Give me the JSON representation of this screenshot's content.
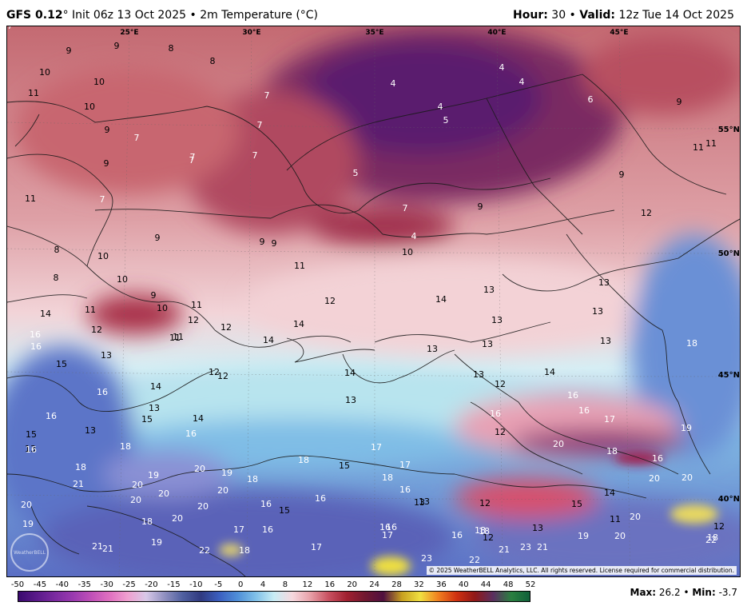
{
  "header": {
    "model": "GFS 0.12",
    "init": "° Init 06z 13 Oct 2025",
    "sep1": " • ",
    "field": "2m Temperature (°C)",
    "hour_label": "Hour:",
    "hour_value": " 30",
    "sep2": " • ",
    "valid_label": "Valid:",
    "valid_value": " 12z Tue 14 Oct 2025"
  },
  "map": {
    "lon_labels": [
      "25°E",
      "30°E",
      "35°E",
      "40°E",
      "45°E"
    ],
    "lat_labels": [
      "55°N",
      "50°N",
      "45°N",
      "40°N"
    ],
    "temperature_labels": [
      "9",
      "9",
      "8",
      "8",
      "10",
      "10",
      "11",
      "7",
      "10",
      "9",
      "7",
      "7",
      "7",
      "7",
      "7",
      "9",
      "11",
      "7",
      "9",
      "8",
      "9",
      "9",
      "10",
      "11",
      "8",
      "10",
      "9",
      "10",
      "11",
      "14",
      "11",
      "12",
      "12",
      "12",
      "16",
      "12",
      "11",
      "16",
      "13",
      "14",
      "14",
      "15",
      "16",
      "14",
      "12",
      "13",
      "16",
      "15",
      "14",
      "13",
      "15",
      "16",
      "13",
      "18",
      "16",
      "18",
      "20",
      "19",
      "20",
      "19",
      "20",
      "21",
      "20",
      "20",
      "20",
      "18",
      "20",
      "16",
      "15",
      "16",
      "19",
      "21",
      "17",
      "16",
      "18",
      "19",
      "20",
      "21",
      "22",
      "18",
      "17",
      "16",
      "18",
      "15",
      "18",
      "17",
      "17",
      "16",
      "13",
      "12",
      "14",
      "12",
      "11",
      "13",
      "13",
      "13",
      "14",
      "13",
      "13",
      "13",
      "12",
      "4",
      "4",
      "4",
      "4",
      "5",
      "5",
      "6",
      "9",
      "11",
      "11",
      "9",
      "7",
      "4",
      "9",
      "10",
      "12",
      "13",
      "13",
      "13",
      "18",
      "14",
      "16",
      "16",
      "16",
      "17",
      "20",
      "18",
      "16",
      "19",
      "20",
      "20",
      "14",
      "15",
      "13",
      "12",
      "11",
      "20",
      "20",
      "18",
      "21",
      "21",
      "23",
      "23",
      "22",
      "22",
      "12",
      "19",
      "13",
      "16",
      "17",
      "16",
      "18",
      "18",
      "12",
      "17"
    ]
  },
  "copyright": "© 2025 WeatherBELL Analytics, LLC. All rights reserved. License required for commercial distribution.",
  "logo_text": "WeatherBELL",
  "colorbar": {
    "ticks": [
      "-50",
      "-45",
      "-40",
      "-35",
      "-30",
      "-25",
      "-20",
      "-15",
      "-10",
      "-5",
      "0",
      "4",
      "8",
      "12",
      "16",
      "20",
      "24",
      "28",
      "32",
      "36",
      "40",
      "44",
      "48",
      "52"
    ],
    "colors": [
      "#3a0a6e",
      "#5a1a8a",
      "#7a2aa0",
      "#9a3ab0",
      "#c050b8",
      "#e070c0",
      "#f0a0d0",
      "#d8c8e8",
      "#9090c0",
      "#5060a0",
      "#303a80",
      "#3b5fc0",
      "#4f8fd8",
      "#7fc0e8",
      "#c8ecf4",
      "#f6d8de",
      "#e8a0a8",
      "#c85060",
      "#a02030",
      "#701830",
      "#501040",
      "#c8a020",
      "#f0e040",
      "#f08020",
      "#d03010",
      "#901818",
      "#5a3060",
      "#2a8040",
      "#10603a"
    ]
  },
  "stats": {
    "max_label": "Max:",
    "max_value": " 26.2",
    "sep": " • ",
    "min_label": "Min:",
    "min_value": " -3.7"
  }
}
